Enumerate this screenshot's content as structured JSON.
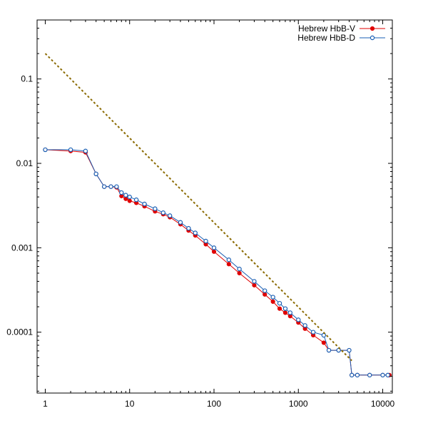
{
  "chart_data": {
    "type": "line",
    "title": "",
    "xlabel": "",
    "ylabel": "",
    "x_scale": "log",
    "y_scale": "log",
    "xlim": [
      0.8,
      13000
    ],
    "ylim": [
      1.9e-05,
      0.5
    ],
    "grid": false,
    "legend_position": "top-right",
    "x_ticks": [
      {
        "value": 1,
        "label": "1"
      },
      {
        "value": 10,
        "label": "10"
      },
      {
        "value": 100,
        "label": "100"
      },
      {
        "value": 1000,
        "label": "1000"
      },
      {
        "value": 10000,
        "label": "10000"
      }
    ],
    "y_ticks": [
      {
        "value": 0.0001,
        "label": "0.0001"
      },
      {
        "value": 0.001,
        "label": "0.001"
      },
      {
        "value": 0.01,
        "label": "0.01"
      },
      {
        "value": 0.1,
        "label": "0.1"
      }
    ],
    "series": [
      {
        "name": "Hebrew HbB-V",
        "color": "#e00000",
        "marker": "filled-circle",
        "x": [
          1,
          2,
          3,
          4,
          5,
          6,
          7,
          8,
          9,
          10,
          12,
          15,
          20,
          25,
          30,
          40,
          50,
          60,
          80,
          100,
          150,
          200,
          300,
          400,
          500,
          600,
          700,
          800,
          1000,
          1200,
          1500,
          2000,
          2300,
          3000,
          4000,
          4300,
          5000,
          7000,
          10000,
          12000
        ],
        "y": [
          0.0145,
          0.014,
          0.0135,
          0.0075,
          0.0053,
          0.0053,
          0.0052,
          0.0041,
          0.0038,
          0.0036,
          0.0034,
          0.0031,
          0.0027,
          0.0025,
          0.0023,
          0.0019,
          0.0016,
          0.0014,
          0.0011,
          0.0009,
          0.00064,
          0.0005,
          0.00036,
          0.00028,
          0.00023,
          0.00019,
          0.00017,
          0.000155,
          0.00013,
          0.00011,
          9.2e-05,
          7.5e-05,
          6.1e-05,
          6.1e-05,
          6.1e-05,
          3.1e-05,
          3.1e-05,
          3.1e-05,
          3.1e-05,
          3.1e-05
        ]
      },
      {
        "name": "Hebrew HbB-D",
        "color": "#1a5fb4",
        "marker": "open-circle",
        "x": [
          1,
          2,
          3,
          4,
          5,
          6,
          7,
          8,
          9,
          10,
          12,
          15,
          20,
          25,
          30,
          40,
          50,
          60,
          80,
          100,
          150,
          200,
          300,
          400,
          500,
          600,
          700,
          800,
          1000,
          1200,
          1500,
          2000,
          2300,
          3000,
          4000,
          4300,
          5000,
          7000,
          10000,
          11500
        ],
        "y": [
          0.0145,
          0.0145,
          0.014,
          0.0075,
          0.0053,
          0.0053,
          0.0053,
          0.0045,
          0.0042,
          0.004,
          0.0037,
          0.0033,
          0.0029,
          0.0026,
          0.0024,
          0.002,
          0.0017,
          0.0015,
          0.0012,
          0.001,
          0.00072,
          0.00056,
          0.0004,
          0.00031,
          0.00026,
          0.00022,
          0.00019,
          0.00017,
          0.00014,
          0.00012,
          0.0001,
          9.2e-05,
          6.1e-05,
          6.1e-05,
          6.1e-05,
          3.1e-05,
          3.1e-05,
          3.1e-05,
          3.1e-05,
          3.1e-05
        ]
      },
      {
        "name": "",
        "color": "#8a6a00",
        "style": "dashed",
        "x": [
          1,
          4300
        ],
        "y": [
          0.2,
          4.6e-05
        ]
      }
    ]
  }
}
